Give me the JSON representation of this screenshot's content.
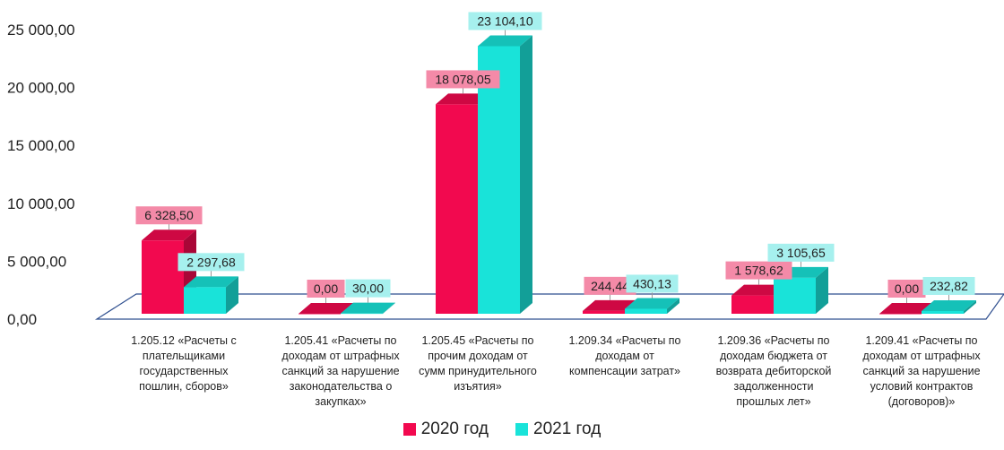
{
  "chart_data": {
    "type": "bar",
    "categories": [
      "1.205.12 «Расчеты с плательщиками государственных пошлин, сборов»",
      "1.205.41 «Расчеты по доходам от штрафных санкций за нарушение законодательства о закупках»",
      "1.205.45 «Расчеты по прочим доходам от сумм принудительного изъятия»",
      "1.209.34 «Расчеты по доходам от компенсации затрат»",
      "1.209.36 «Расчеты по доходам бюджета от возврата дебиторской задолженности прошлых лет»",
      "1.209.41 «Расчеты по доходам от штрафных санкций за нарушение условий контрактов (договоров)»"
    ],
    "category_lines": [
      [
        "1.205.12 «Расчеты с",
        "плательщиками",
        "государственных",
        "пошлин, сборов»"
      ],
      [
        "1.205.41 «Расчеты по",
        "доходам от штрафных",
        "санкций за нарушение",
        "законодательства о",
        "закупках»"
      ],
      [
        "1.205.45 «Расчеты по",
        "прочим доходам от",
        "сумм принудительного",
        "изъятия»"
      ],
      [
        "1.209.34 «Расчеты по",
        "доходам от",
        "компенсации затрат»"
      ],
      [
        "1.209.36 «Расчеты по",
        "доходам бюджета от",
        "возврата дебиторской",
        "задолженности",
        "прошлых лет»"
      ],
      [
        "1.209.41 «Расчеты по",
        "доходам от штрафных",
        "санкций за нарушение",
        "условий контрактов",
        "(договоров)»"
      ]
    ],
    "series": [
      {
        "name": "2020 год",
        "color": "#f2094f",
        "values": [
          6328.5,
          0.0,
          18078.05,
          244.44,
          1578.62,
          0.0
        ],
        "labels": [
          "6 328,50",
          "0,00",
          "18 078,05",
          "244,44",
          "1 578,62",
          "0,00"
        ]
      },
      {
        "name": "2021 год",
        "color": "#19e3d9",
        "values": [
          2297.68,
          30.0,
          23104.1,
          430.13,
          3105.65,
          232.82
        ],
        "labels": [
          "2 297,68",
          "30,00",
          "23 104,10",
          "430,13",
          "3 105,65",
          "232,82"
        ]
      }
    ],
    "yticks": [
      0,
      5000,
      10000,
      15000,
      20000,
      25000
    ],
    "ytick_labels": [
      "0,00",
      "5 000,00",
      "10 000,00",
      "15 000,00",
      "20 000,00",
      "25 000,00"
    ],
    "ylim": [
      0,
      25000
    ],
    "legend_position": "bottom",
    "grid": false
  }
}
